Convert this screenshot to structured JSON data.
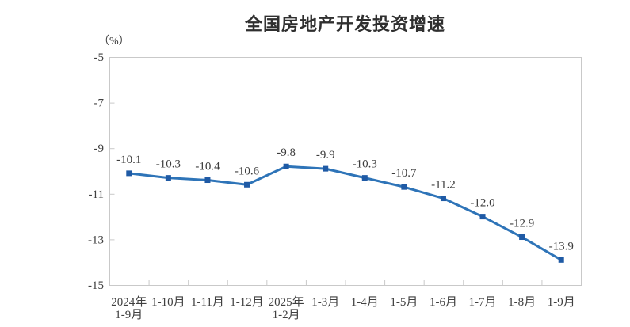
{
  "chart_data": {
    "type": "line",
    "title": "全国房地产开发投资增速",
    "unit_label": "（%）",
    "categories": [
      "2024年\n1-9月",
      "1-10月",
      "1-11月",
      "1-12月",
      "2025年\n1-2月",
      "1-3月",
      "1-4月",
      "1-5月",
      "1-6月",
      "1-7月",
      "1-8月",
      "1-9月"
    ],
    "series": [
      {
        "name": "全国房地产开发投资增速",
        "values": [
          -10.1,
          -10.3,
          -10.4,
          -10.6,
          -9.8,
          -9.9,
          -10.3,
          -10.7,
          -11.2,
          -12.0,
          -12.9,
          -13.9
        ],
        "data_labels": [
          "-10.1",
          "-10.3",
          "-10.4",
          "-10.6",
          "-9.8",
          "-9.9",
          "-10.3",
          "-10.7",
          "-11.2",
          "-12.0",
          "-12.9",
          "-13.9"
        ]
      }
    ],
    "ylim": [
      -15,
      -5
    ],
    "y_ticks": [
      -5,
      -7,
      -9,
      -11,
      -13,
      -15
    ],
    "grid": false,
    "legend": "none",
    "marker_shape": "square",
    "colors": {
      "line": "#2E74B8",
      "marker": "#1F5AA5",
      "axis_text": "#404040",
      "data_label_text": "#3D3D3D",
      "plot_border": "#C9C9C9",
      "title_text": "#2F2F2F",
      "background": "#FFFFFF"
    }
  }
}
